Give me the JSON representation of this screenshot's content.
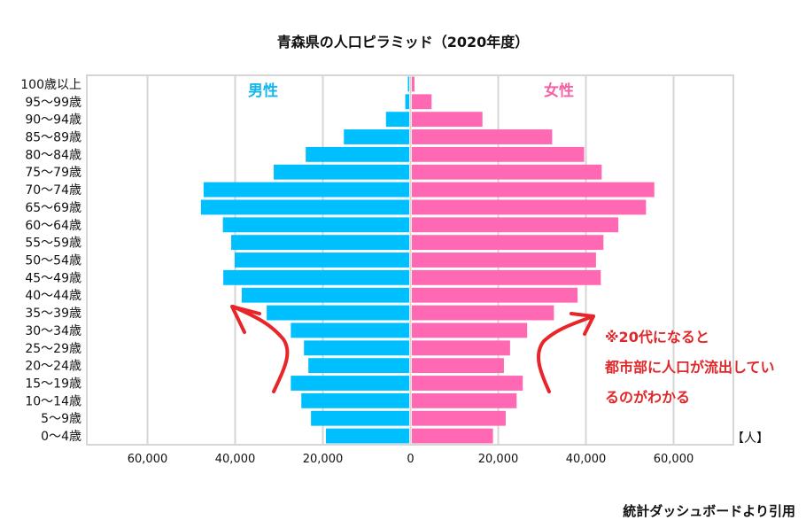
{
  "chart_data": {
    "type": "bar",
    "orientation": "horizontal-pyramid",
    "title": "青森県の人口ピラミッド（2020年度）",
    "xlabel": "",
    "unit_label": "【人】",
    "xlim": [
      -73000,
      73000
    ],
    "x_ticks": [
      -60000,
      -40000,
      -20000,
      0,
      20000,
      40000,
      60000
    ],
    "x_tick_labels": [
      "60,000",
      "40,000",
      "20,000",
      "0",
      "20,000",
      "40,000",
      "60,000"
    ],
    "grid": true,
    "categories": [
      "100歳以上",
      "95～99歳",
      "90～94歳",
      "85～89歳",
      "80～84歳",
      "75～79歳",
      "70～74歳",
      "65～69歳",
      "60～64歳",
      "55～59歳",
      "50～54歳",
      "45～49歳",
      "40～44歳",
      "35～39歳",
      "30～34歳",
      "25～29歳",
      "20～24歳",
      "15～19歳",
      "10～14歳",
      "5～9歳",
      "0～4歳"
    ],
    "series": [
      {
        "name": "男性",
        "side": "left",
        "color": "#00bfff",
        "values": [
          300,
          900,
          5300,
          14900,
          23600,
          30900,
          46900,
          47500,
          42500,
          40600,
          39800,
          42400,
          38200,
          32500,
          27000,
          24000,
          23000,
          27000,
          24600,
          22400,
          19000
        ]
      },
      {
        "name": "女性",
        "side": "right",
        "color": "#ff69b4",
        "values": [
          600,
          4500,
          16100,
          32000,
          39300,
          43300,
          55300,
          53400,
          47100,
          43700,
          42000,
          43100,
          37800,
          32400,
          26300,
          22400,
          21000,
          25300,
          23900,
          21400,
          18500
        ]
      }
    ],
    "legend": [
      {
        "label": "男性",
        "placement": "top-left-inside"
      },
      {
        "label": "女性",
        "placement": "top-right-inside"
      }
    ],
    "annotation": {
      "lines": [
        "※20代になると",
        "都市部に人口が流出してい",
        "るのがわかる"
      ],
      "color": "#e0282a"
    },
    "source_note": "統計ダッシュボードより引用"
  }
}
